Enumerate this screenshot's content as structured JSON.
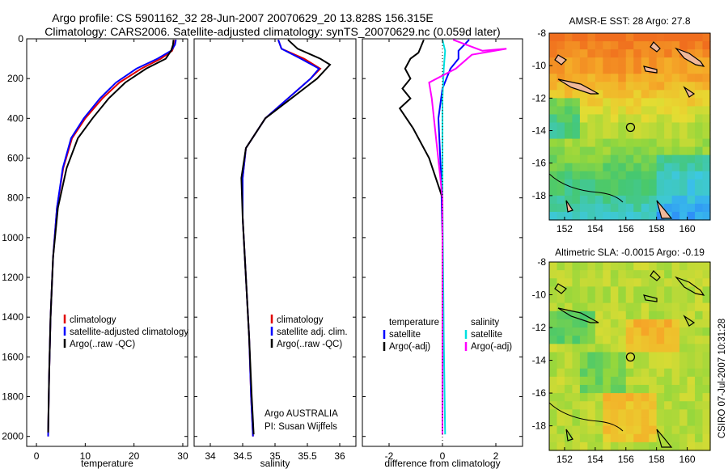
{
  "title_line1": "Argo profile: CS 5901162_32 28-Jun-2007 20070629_20 13.828S 156.315E",
  "title_line2": "Climatology: CARS2006. Satellite-adjusted climatology: synTS_20070629.nc (0.059d later)",
  "footer_vertical": "CSIRO 07-Jul-2007 10:31:28",
  "credit_line1": "Argo AUSTRALIA",
  "credit_line2": "PI: Susan Wijffels",
  "colors": {
    "climatology": "#e00000",
    "satellite": "#0000ff",
    "argo": "#000000",
    "argo_sal": "#ff00ff",
    "sat_sal": "#00e0e0"
  },
  "chart_data": [
    {
      "type": "line",
      "xlabel": "temperature",
      "ylabel": "",
      "xlim": [
        -2,
        31
      ],
      "ylim": [
        2050,
        0
      ],
      "xticks": [
        0,
        10,
        20,
        30
      ],
      "yticks": [
        0,
        200,
        400,
        600,
        800,
        1000,
        1200,
        1400,
        1600,
        1800,
        2000
      ],
      "legend": [
        "climatology",
        "satellite-adjusted climatology",
        "Argo(..raw -QC)"
      ],
      "legend_placement": "lower-center",
      "series": [
        {
          "name": "climatology",
          "color": "#e00000",
          "x": [
            28.5,
            28.3,
            27.8,
            25.5,
            21.5,
            17,
            13.5,
            10,
            7.3,
            5.5,
            4.2,
            3.4,
            2.9,
            2.6,
            2.4
          ],
          "y": [
            5,
            30,
            60,
            100,
            150,
            220,
            300,
            400,
            500,
            650,
            850,
            1100,
            1400,
            1700,
            2000
          ]
        },
        {
          "name": "satellite-adjusted climatology",
          "color": "#0000ff",
          "x": [
            28.6,
            28.4,
            27.6,
            24.8,
            20.5,
            16.3,
            13,
            9.7,
            7.1,
            5.4,
            4.2,
            3.4,
            2.9,
            2.6,
            2.4
          ],
          "y": [
            5,
            30,
            60,
            100,
            150,
            220,
            300,
            400,
            500,
            650,
            850,
            1100,
            1400,
            1700,
            2000
          ]
        },
        {
          "name": "Argo(..raw -QC)",
          "color": "#000000",
          "x": [
            28.1,
            28,
            27.6,
            26.5,
            22.5,
            18.2,
            14.8,
            11.5,
            8.5,
            6.2,
            4.4,
            3.4,
            2.9,
            2.6,
            2.4
          ],
          "y": [
            5,
            30,
            60,
            100,
            150,
            220,
            300,
            400,
            500,
            650,
            850,
            1100,
            1400,
            1700,
            1980
          ]
        }
      ]
    },
    {
      "type": "line",
      "xlabel": "salinity",
      "ylabel": "",
      "xlim": [
        33.75,
        36.25
      ],
      "ylim": [
        2050,
        0
      ],
      "xticks": [
        34,
        34.5,
        35,
        35.5,
        36
      ],
      "legend": [
        "climatology",
        "satellite adj. clim.",
        "Argo(..raw -QC)"
      ],
      "legend_placement": "lower-right",
      "series": [
        {
          "name": "climatology",
          "color": "#e00000",
          "x": [
            35.05,
            35.1,
            35.45,
            35.7,
            35.55,
            35.2,
            34.85,
            34.55,
            34.5,
            34.5,
            34.55,
            34.6,
            34.63,
            34.66
          ],
          "y": [
            5,
            50,
            100,
            150,
            200,
            300,
            400,
            550,
            700,
            900,
            1200,
            1500,
            1800,
            2000
          ]
        },
        {
          "name": "satellite adj. clim.",
          "color": "#0000ff",
          "x": [
            35.05,
            35.1,
            35.4,
            35.68,
            35.55,
            35.2,
            34.85,
            34.55,
            34.5,
            34.5,
            34.55,
            34.6,
            34.63,
            34.66
          ],
          "y": [
            5,
            50,
            100,
            150,
            200,
            300,
            400,
            550,
            700,
            900,
            1200,
            1500,
            1800,
            2000
          ]
        },
        {
          "name": "Argo(..raw -QC)",
          "color": "#000000",
          "x": [
            35.2,
            35.35,
            35.7,
            35.85,
            35.65,
            35.25,
            34.85,
            34.55,
            34.48,
            34.5,
            34.55,
            34.6,
            34.64,
            34.67
          ],
          "y": [
            5,
            50,
            100,
            130,
            200,
            300,
            400,
            550,
            700,
            900,
            1200,
            1500,
            1800,
            1990
          ]
        }
      ]
    },
    {
      "type": "line",
      "xlabel": "difference from climatology",
      "ylabel": "",
      "xlim": [
        -3,
        3
      ],
      "ylim": [
        2050,
        0
      ],
      "xticks": [
        -2,
        0,
        2
      ],
      "legend": [
        "temperature",
        "satellite",
        "Argo(-adj)",
        "salinity",
        "satellite",
        "Argo(-adj)"
      ],
      "legend_placement": "lower-center",
      "series": [
        {
          "name": "temperature satellite",
          "color": "#0000ff",
          "x": [
            1,
            0.6,
            0.6,
            0.3,
            0,
            -0.15,
            -0.05,
            0,
            0,
            0
          ],
          "y": [
            5,
            60,
            100,
            150,
            250,
            400,
            700,
            1000,
            1500,
            1990
          ]
        },
        {
          "name": "temperature Argo(-adj)",
          "color": "#000000",
          "x": [
            -0.7,
            -0.9,
            -1.2,
            -1.4,
            -1.2,
            -1.5,
            -1.2,
            -1.6,
            -1.1,
            -0.5,
            0,
            0,
            0
          ],
          "y": [
            5,
            70,
            100,
            150,
            200,
            250,
            300,
            350,
            450,
            600,
            800,
            1500,
            1990
          ]
        },
        {
          "name": "salinity satellite",
          "color": "#00e0e0",
          "x": [
            0,
            0.1,
            0.05,
            0,
            0,
            0.05,
            0.1
          ],
          "y": [
            5,
            60,
            150,
            300,
            800,
            1500,
            1990
          ]
        },
        {
          "name": "salinity Argo(-adj)",
          "color": "#ff00ff",
          "x": [
            0.4,
            1.5,
            2.4,
            1.1,
            0.5,
            -0.5,
            -0.4,
            0,
            0,
            0
          ],
          "y": [
            5,
            60,
            50,
            80,
            150,
            220,
            300,
            800,
            1500,
            1990
          ]
        }
      ]
    },
    {
      "type": "heatmap",
      "title": "AMSR-E SST: 28 Argo: 27.8",
      "xlim": [
        151,
        161.5
      ],
      "ylim": [
        -19.5,
        -8
      ],
      "xticks": [
        152,
        154,
        156,
        158,
        160
      ],
      "yticks": [
        -8,
        -10,
        -12,
        -14,
        -16,
        -18
      ],
      "marker": {
        "x": 156.3,
        "y": -13.8
      }
    },
    {
      "type": "heatmap",
      "title": "Altimetric SLA: -0.0015 Argo: -0.19",
      "xlim": [
        151,
        161.5
      ],
      "ylim": [
        -19.5,
        -8
      ],
      "xticks": [
        152,
        154,
        156,
        158,
        160
      ],
      "yticks": [
        -8,
        -10,
        -12,
        -14,
        -16,
        -18
      ],
      "marker": {
        "x": 156.3,
        "y": -13.8
      }
    }
  ]
}
